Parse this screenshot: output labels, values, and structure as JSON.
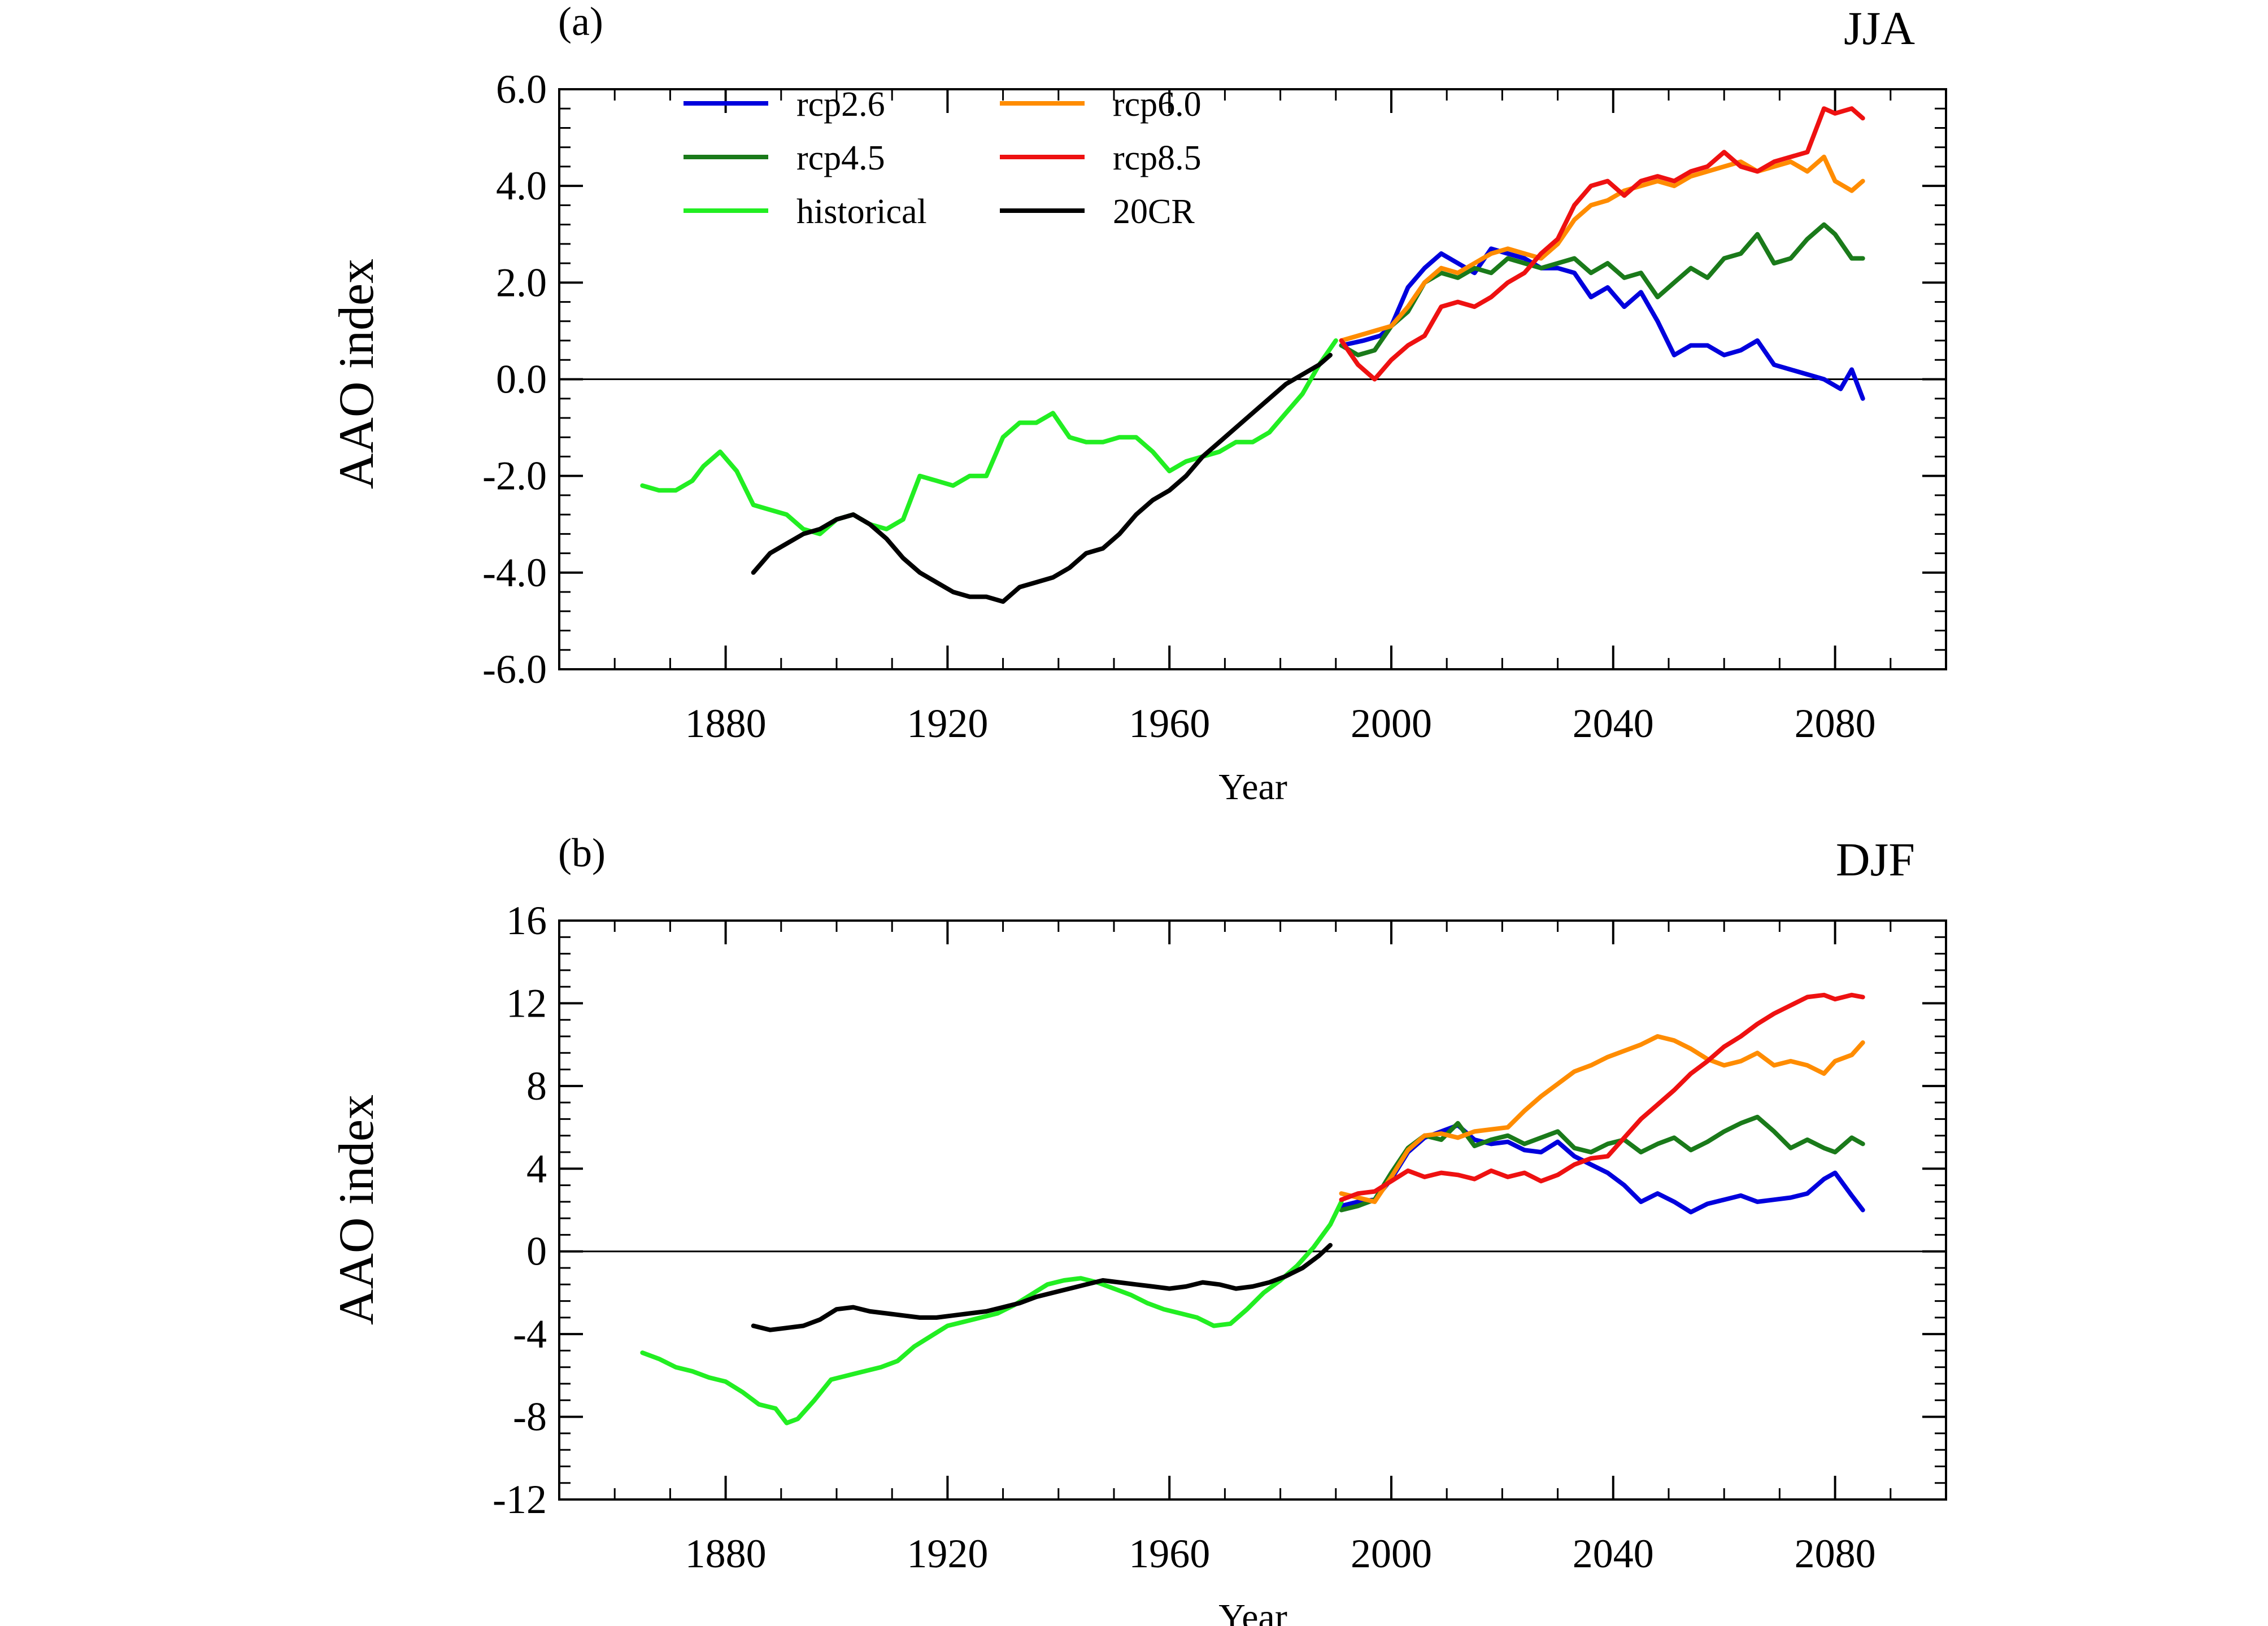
{
  "chart_data": [
    {
      "type": "line",
      "panel_label": "(a)",
      "season": "JJA",
      "xlabel": "Year",
      "ylabel": "AAO index",
      "xlim": [
        1850,
        2100
      ],
      "ylim": [
        -6,
        6
      ],
      "xticks": [
        1880,
        1920,
        1960,
        2000,
        2040,
        2080
      ],
      "xtick_labels": [
        "1880",
        "1920",
        "1960",
        "2000",
        "2040",
        "2080"
      ],
      "yticks": [
        -6,
        -4,
        -2,
        0,
        2,
        4,
        6
      ],
      "ytick_labels": [
        "-6.0",
        "-4.0",
        "-2.0",
        "0.0",
        "2.0",
        "4.0",
        "6.0"
      ],
      "zero_line": true,
      "grid": false,
      "legend_position": "top-left",
      "series": [
        {
          "name": "rcp2.6",
          "color": "#0000dd",
          "x": [
            1991,
            1995,
            1998,
            2000,
            2003,
            2006,
            2009,
            2012,
            2015,
            2018,
            2021,
            2024,
            2027,
            2030,
            2033,
            2036,
            2039,
            2042,
            2045,
            2048,
            2051,
            2054,
            2057,
            2060,
            2063,
            2066,
            2069,
            2072,
            2075,
            2078,
            2081,
            2083,
            2085
          ],
          "y": [
            0.7,
            0.8,
            0.9,
            1.1,
            1.9,
            2.3,
            2.6,
            2.4,
            2.2,
            2.7,
            2.6,
            2.5,
            2.3,
            2.3,
            2.2,
            1.7,
            1.9,
            1.5,
            1.8,
            1.2,
            0.5,
            0.7,
            0.7,
            0.5,
            0.6,
            0.8,
            0.3,
            0.2,
            0.1,
            0.0,
            -0.2,
            0.2,
            -0.4
          ]
        },
        {
          "name": "rcp4.5",
          "color": "#1a7a1a",
          "x": [
            1991,
            1994,
            1997,
            2000,
            2003,
            2006,
            2009,
            2012,
            2015,
            2018,
            2021,
            2024,
            2027,
            2030,
            2033,
            2036,
            2039,
            2042,
            2045,
            2048,
            2051,
            2054,
            2057,
            2060,
            2063,
            2066,
            2069,
            2072,
            2075,
            2078,
            2080,
            2083,
            2085
          ],
          "y": [
            0.7,
            0.5,
            0.6,
            1.1,
            1.4,
            2.0,
            2.2,
            2.1,
            2.3,
            2.2,
            2.5,
            2.4,
            2.3,
            2.4,
            2.5,
            2.2,
            2.4,
            2.1,
            2.2,
            1.7,
            2.0,
            2.3,
            2.1,
            2.5,
            2.6,
            3.0,
            2.4,
            2.5,
            2.9,
            3.2,
            3.0,
            2.5,
            2.5
          ]
        },
        {
          "name": "historical",
          "color": "#22ee22",
          "x": [
            1865,
            1868,
            1871,
            1874,
            1876,
            1879,
            1882,
            1885,
            1888,
            1891,
            1894,
            1897,
            1900,
            1903,
            1906,
            1909,
            1912,
            1915,
            1918,
            1921,
            1924,
            1927,
            1930,
            1933,
            1936,
            1939,
            1942,
            1945,
            1948,
            1951,
            1954,
            1957,
            1960,
            1963,
            1966,
            1969,
            1972,
            1975,
            1978,
            1981,
            1984,
            1987,
            1990
          ],
          "y": [
            -2.2,
            -2.3,
            -2.3,
            -2.1,
            -1.8,
            -1.5,
            -1.9,
            -2.6,
            -2.7,
            -2.8,
            -3.1,
            -3.2,
            -2.9,
            -2.8,
            -3.0,
            -3.1,
            -2.9,
            -2.0,
            -2.1,
            -2.2,
            -2.0,
            -2.0,
            -1.2,
            -0.9,
            -0.9,
            -0.7,
            -1.2,
            -1.3,
            -1.3,
            -1.2,
            -1.2,
            -1.5,
            -1.9,
            -1.7,
            -1.6,
            -1.5,
            -1.3,
            -1.3,
            -1.1,
            -0.7,
            -0.3,
            0.3,
            0.8
          ]
        },
        {
          "name": "rcp6.0",
          "color": "#ff8c00",
          "x": [
            1991,
            1994,
            1997,
            2000,
            2003,
            2006,
            2009,
            2012,
            2015,
            2018,
            2021,
            2024,
            2027,
            2030,
            2033,
            2036,
            2039,
            2042,
            2045,
            2048,
            2051,
            2054,
            2057,
            2060,
            2063,
            2066,
            2069,
            2072,
            2075,
            2078,
            2080,
            2083,
            2085
          ],
          "y": [
            0.8,
            0.9,
            1.0,
            1.1,
            1.5,
            2.0,
            2.3,
            2.2,
            2.4,
            2.6,
            2.7,
            2.6,
            2.5,
            2.8,
            3.3,
            3.6,
            3.7,
            3.9,
            4.0,
            4.1,
            4.0,
            4.2,
            4.3,
            4.4,
            4.5,
            4.3,
            4.4,
            4.5,
            4.3,
            4.6,
            4.1,
            3.9,
            4.1
          ]
        },
        {
          "name": "rcp8.5",
          "color": "#ee1111",
          "x": [
            1991,
            1994,
            1997,
            2000,
            2003,
            2006,
            2009,
            2012,
            2015,
            2018,
            2021,
            2024,
            2027,
            2030,
            2033,
            2036,
            2039,
            2042,
            2045,
            2048,
            2051,
            2054,
            2057,
            2060,
            2063,
            2066,
            2069,
            2072,
            2075,
            2078,
            2080,
            2083,
            2085
          ],
          "y": [
            0.8,
            0.3,
            0.0,
            0.4,
            0.7,
            0.9,
            1.5,
            1.6,
            1.5,
            1.7,
            2.0,
            2.2,
            2.6,
            2.9,
            3.6,
            4.0,
            4.1,
            3.8,
            4.1,
            4.2,
            4.1,
            4.3,
            4.4,
            4.7,
            4.4,
            4.3,
            4.5,
            4.6,
            4.7,
            5.6,
            5.5,
            5.6,
            5.4
          ]
        },
        {
          "name": "20CR",
          "color": "#000000",
          "x": [
            1885,
            1888,
            1891,
            1894,
            1897,
            1900,
            1903,
            1906,
            1909,
            1912,
            1915,
            1918,
            1921,
            1924,
            1927,
            1930,
            1933,
            1936,
            1939,
            1942,
            1945,
            1948,
            1951,
            1954,
            1957,
            1960,
            1963,
            1966,
            1969,
            1972,
            1975,
            1978,
            1981,
            1984,
            1987,
            1989
          ],
          "y": [
            -4.0,
            -3.6,
            -3.4,
            -3.2,
            -3.1,
            -2.9,
            -2.8,
            -3.0,
            -3.3,
            -3.7,
            -4.0,
            -4.2,
            -4.4,
            -4.5,
            -4.5,
            -4.6,
            -4.3,
            -4.2,
            -4.1,
            -3.9,
            -3.6,
            -3.5,
            -3.2,
            -2.8,
            -2.5,
            -2.3,
            -2.0,
            -1.6,
            -1.3,
            -1.0,
            -0.7,
            -0.4,
            -0.1,
            0.1,
            0.3,
            0.5
          ]
        }
      ]
    },
    {
      "type": "line",
      "panel_label": "(b)",
      "season": "DJF",
      "xlabel": "Year",
      "ylabel": "AAO index",
      "xlim": [
        1850,
        2100
      ],
      "ylim": [
        -12,
        16
      ],
      "xticks": [
        1880,
        1920,
        1960,
        2000,
        2040,
        2080
      ],
      "xtick_labels": [
        "1880",
        "1920",
        "1960",
        "2000",
        "2040",
        "2080"
      ],
      "yticks": [
        -12,
        -8,
        -4,
        0,
        4,
        8,
        12,
        16
      ],
      "ytick_labels": [
        "-12",
        "-8",
        "-4",
        "0",
        "4",
        "8",
        "12",
        "16"
      ],
      "zero_line": true,
      "grid": false,
      "series": [
        {
          "name": "rcp2.6",
          "color": "#0000dd",
          "x": [
            1991,
            1994,
            1997,
            2000,
            2003,
            2006,
            2009,
            2012,
            2015,
            2018,
            2021,
            2024,
            2027,
            2030,
            2033,
            2036,
            2039,
            2042,
            2045,
            2048,
            2051,
            2054,
            2057,
            2060,
            2063,
            2066,
            2069,
            2072,
            2075,
            2078,
            2080,
            2083,
            2085
          ],
          "y": [
            2.2,
            2.4,
            2.5,
            3.5,
            4.8,
            5.5,
            5.8,
            6.1,
            5.4,
            5.2,
            5.3,
            4.9,
            4.8,
            5.3,
            4.6,
            4.2,
            3.8,
            3.2,
            2.4,
            2.8,
            2.4,
            1.9,
            2.3,
            2.5,
            2.7,
            2.4,
            2.5,
            2.6,
            2.8,
            3.5,
            3.8,
            2.7,
            2.0
          ]
        },
        {
          "name": "rcp4.5",
          "color": "#1a7a1a",
          "x": [
            1991,
            1994,
            1997,
            2000,
            2003,
            2006,
            2009,
            2012,
            2015,
            2018,
            2021,
            2024,
            2027,
            2030,
            2033,
            2036,
            2039,
            2042,
            2045,
            2048,
            2051,
            2054,
            2057,
            2060,
            2063,
            2066,
            2069,
            2072,
            2075,
            2078,
            2080,
            2083,
            2085
          ],
          "y": [
            2.0,
            2.2,
            2.5,
            3.8,
            5.0,
            5.6,
            5.4,
            6.2,
            5.1,
            5.4,
            5.6,
            5.2,
            5.5,
            5.8,
            5.0,
            4.8,
            5.2,
            5.4,
            4.8,
            5.2,
            5.5,
            4.9,
            5.3,
            5.8,
            6.2,
            6.5,
            5.8,
            5.0,
            5.4,
            5.0,
            4.8,
            5.5,
            5.2
          ]
        },
        {
          "name": "historical",
          "color": "#22ee22",
          "x": [
            1865,
            1868,
            1871,
            1874,
            1877,
            1880,
            1883,
            1886,
            1889,
            1891,
            1893,
            1896,
            1899,
            1902,
            1905,
            1908,
            1911,
            1914,
            1917,
            1920,
            1923,
            1926,
            1929,
            1932,
            1935,
            1938,
            1941,
            1944,
            1947,
            1950,
            1953,
            1956,
            1959,
            1962,
            1965,
            1968,
            1971,
            1974,
            1977,
            1980,
            1983,
            1986,
            1989,
            1991
          ],
          "y": [
            -4.9,
            -5.2,
            -5.6,
            -5.8,
            -6.1,
            -6.3,
            -6.8,
            -7.4,
            -7.6,
            -8.3,
            -8.1,
            -7.2,
            -6.2,
            -6.0,
            -5.8,
            -5.6,
            -5.3,
            -4.6,
            -4.1,
            -3.6,
            -3.4,
            -3.2,
            -3.0,
            -2.6,
            -2.1,
            -1.6,
            -1.4,
            -1.3,
            -1.5,
            -1.8,
            -2.1,
            -2.5,
            -2.8,
            -3.0,
            -3.2,
            -3.6,
            -3.5,
            -2.8,
            -2.0,
            -1.4,
            -0.7,
            0.2,
            1.3,
            2.4
          ]
        },
        {
          "name": "rcp6.0",
          "color": "#ff8c00",
          "x": [
            1991,
            1994,
            1997,
            2000,
            2003,
            2006,
            2009,
            2012,
            2015,
            2018,
            2021,
            2024,
            2027,
            2030,
            2033,
            2036,
            2039,
            2042,
            2045,
            2048,
            2051,
            2054,
            2057,
            2060,
            2063,
            2066,
            2069,
            2072,
            2075,
            2078,
            2080,
            2083,
            2085
          ],
          "y": [
            2.8,
            2.6,
            2.4,
            3.6,
            4.9,
            5.6,
            5.7,
            5.5,
            5.8,
            5.9,
            6.0,
            6.8,
            7.5,
            8.1,
            8.7,
            9.0,
            9.4,
            9.7,
            10.0,
            10.4,
            10.2,
            9.8,
            9.3,
            9.0,
            9.2,
            9.6,
            9.0,
            9.2,
            9.0,
            8.6,
            9.2,
            9.5,
            10.1
          ]
        },
        {
          "name": "rcp8.5",
          "color": "#ee1111",
          "x": [
            1991,
            1994,
            1997,
            2000,
            2003,
            2006,
            2009,
            2012,
            2015,
            2018,
            2021,
            2024,
            2027,
            2030,
            2033,
            2036,
            2039,
            2042,
            2045,
            2048,
            2051,
            2054,
            2057,
            2060,
            2063,
            2066,
            2069,
            2072,
            2075,
            2078,
            2080,
            2083,
            2085
          ],
          "y": [
            2.5,
            2.8,
            2.9,
            3.4,
            3.9,
            3.6,
            3.8,
            3.7,
            3.5,
            3.9,
            3.6,
            3.8,
            3.4,
            3.7,
            4.2,
            4.5,
            4.6,
            5.5,
            6.4,
            7.1,
            7.8,
            8.6,
            9.2,
            9.9,
            10.4,
            11.0,
            11.5,
            11.9,
            12.3,
            12.4,
            12.2,
            12.4,
            12.3
          ]
        },
        {
          "name": "20CR",
          "color": "#000000",
          "x": [
            1885,
            1888,
            1891,
            1894,
            1897,
            1900,
            1903,
            1906,
            1909,
            1912,
            1915,
            1918,
            1921,
            1924,
            1927,
            1930,
            1933,
            1936,
            1939,
            1942,
            1945,
            1948,
            1951,
            1954,
            1957,
            1960,
            1963,
            1966,
            1969,
            1972,
            1975,
            1978,
            1981,
            1984,
            1987,
            1989
          ],
          "y": [
            -3.6,
            -3.8,
            -3.7,
            -3.6,
            -3.3,
            -2.8,
            -2.7,
            -2.9,
            -3.0,
            -3.1,
            -3.2,
            -3.2,
            -3.1,
            -3.0,
            -2.9,
            -2.7,
            -2.5,
            -2.2,
            -2.0,
            -1.8,
            -1.6,
            -1.4,
            -1.5,
            -1.6,
            -1.7,
            -1.8,
            -1.7,
            -1.5,
            -1.6,
            -1.8,
            -1.7,
            -1.5,
            -1.2,
            -0.8,
            -0.2,
            0.3
          ]
        }
      ]
    }
  ],
  "legend": {
    "entries": [
      {
        "name": "rcp2.6",
        "color": "#0000dd"
      },
      {
        "name": "rcp4.5",
        "color": "#1a7a1a"
      },
      {
        "name": "historical",
        "color": "#22ee22"
      },
      {
        "name": "rcp6.0",
        "color": "#ff8c00"
      },
      {
        "name": "rcp8.5",
        "color": "#ee1111"
      },
      {
        "name": "20CR",
        "color": "#000000"
      }
    ]
  }
}
